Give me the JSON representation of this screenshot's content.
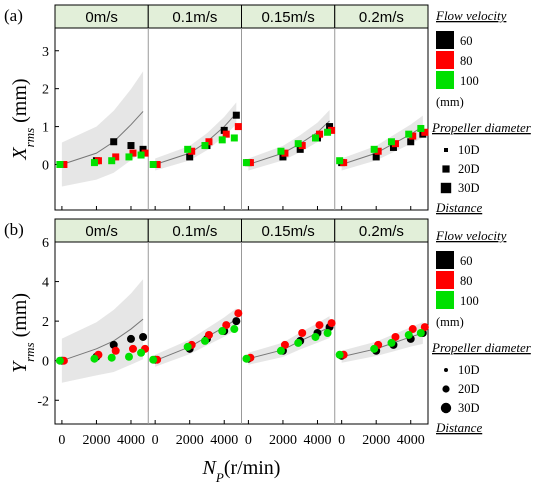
{
  "chart_data": [
    {
      "type": "scatter",
      "panel_label": "(a)",
      "ylabel": {
        "main": "X",
        "sub": "rms",
        "unit": " (mm)"
      },
      "ylim": [
        -1.2,
        3.6
      ],
      "yticks": [
        "0",
        "1",
        "2",
        "3"
      ],
      "facets": [
        {
          "label": "0m/s",
          "x": [
            0,
            2000,
            3000,
            4000,
            4700
          ],
          "series": [
            {
              "velocity": "60",
              "values": [
                0,
                0.1,
                0.6,
                0.5,
                0.4
              ]
            },
            {
              "velocity": "80",
              "values": [
                0,
                0.1,
                0.2,
                0.3,
                0.3
              ]
            },
            {
              "velocity": "100",
              "values": [
                0,
                0.05,
                0.1,
                0.2,
                0.25
              ]
            }
          ],
          "fit": [
            0,
            0.3,
            0.6,
            1.05,
            1.4
          ]
        },
        {
          "label": "0.1m/s",
          "x": [
            0,
            2000,
            3000,
            4000,
            4700
          ],
          "series": [
            {
              "velocity": "60",
              "values": [
                0,
                0.2,
                0.5,
                0.9,
                1.3
              ]
            },
            {
              "velocity": "80",
              "values": [
                0,
                0.35,
                0.6,
                0.8,
                1.0
              ]
            },
            {
              "velocity": "100",
              "values": [
                0,
                0.4,
                0.5,
                0.65,
                0.7
              ]
            }
          ],
          "fit": [
            0,
            0.3,
            0.6,
            1.0,
            1.35
          ]
        },
        {
          "label": "0.15m/s",
          "x": [
            0,
            2000,
            3000,
            4000,
            4700
          ],
          "series": [
            {
              "velocity": "60",
              "values": [
                0.05,
                0.2,
                0.4,
                0.7,
                1.0
              ]
            },
            {
              "velocity": "80",
              "values": [
                0.05,
                0.3,
                0.5,
                0.8,
                0.9
              ]
            },
            {
              "velocity": "100",
              "values": [
                0.05,
                0.35,
                0.55,
                0.7,
                0.85
              ]
            }
          ],
          "fit": [
            0,
            0.3,
            0.55,
            0.85,
            1.15
          ]
        },
        {
          "label": "0.2m/s",
          "x": [
            0,
            2000,
            3000,
            4000,
            4700
          ],
          "series": [
            {
              "velocity": "60",
              "values": [
                0.05,
                0.2,
                0.45,
                0.6,
                0.8
              ]
            },
            {
              "velocity": "80",
              "values": [
                0.05,
                0.35,
                0.55,
                0.75,
                0.85
              ]
            },
            {
              "velocity": "100",
              "values": [
                0.1,
                0.4,
                0.6,
                0.8,
                0.95
              ]
            }
          ],
          "fit": [
            0,
            0.3,
            0.55,
            0.8,
            1.0
          ]
        }
      ],
      "legend": {
        "flow_title": "Flow velocity",
        "flow_items": [
          {
            "label": "60",
            "color": "#000000"
          },
          {
            "label": "80",
            "color": "#ff0000"
          },
          {
            "label": "100",
            "color": "#00e000"
          }
        ],
        "flow_unit": "(mm)",
        "prop_title": "Propeller diameter",
        "prop_items": [
          "10D",
          "20D",
          "30D"
        ],
        "dist_title": "Distance"
      }
    },
    {
      "type": "scatter",
      "panel_label": "(b)",
      "ylabel": {
        "main": "Y",
        "sub": "rms",
        "unit": " (mm)"
      },
      "ylim": [
        -3.2,
        6
      ],
      "yticks": [
        "-2",
        "0",
        "2",
        "4",
        "6"
      ],
      "facets": [
        {
          "label": "0m/s",
          "x": [
            0,
            2000,
            3000,
            4000,
            4700
          ],
          "series": [
            {
              "velocity": "60",
              "values": [
                0,
                0.2,
                0.8,
                1.1,
                1.2
              ]
            },
            {
              "velocity": "80",
              "values": [
                0,
                0.3,
                0.5,
                0.6,
                0.6
              ]
            },
            {
              "velocity": "100",
              "values": [
                0,
                0.1,
                0.15,
                0.2,
                0.4
              ]
            }
          ],
          "fit": [
            0,
            0.6,
            1.0,
            1.6,
            2.1
          ]
        },
        {
          "label": "0.1m/s",
          "x": [
            0,
            2000,
            3000,
            4000,
            4700
          ],
          "series": [
            {
              "velocity": "60",
              "values": [
                0.05,
                0.6,
                1.1,
                1.5,
                2.0
              ]
            },
            {
              "velocity": "80",
              "values": [
                0.05,
                0.8,
                1.3,
                1.8,
                2.4
              ]
            },
            {
              "velocity": "100",
              "values": [
                0.05,
                0.7,
                1.0,
                1.5,
                1.6
              ]
            }
          ],
          "fit": [
            0,
            0.7,
            1.2,
            1.7,
            2.1
          ]
        },
        {
          "label": "0.15m/s",
          "x": [
            0,
            2000,
            3000,
            4000,
            4700
          ],
          "series": [
            {
              "velocity": "60",
              "values": [
                0.1,
                0.5,
                1.0,
                1.4,
                1.7
              ]
            },
            {
              "velocity": "80",
              "values": [
                0.15,
                0.8,
                1.4,
                1.8,
                1.9
              ]
            },
            {
              "velocity": "100",
              "values": [
                0.1,
                0.5,
                0.9,
                1.2,
                1.4
              ]
            }
          ],
          "fit": [
            0.1,
            0.55,
            1.0,
            1.4,
            1.7
          ]
        },
        {
          "label": "0.2m/s",
          "x": [
            0,
            2000,
            3000,
            4000,
            4700
          ],
          "series": [
            {
              "velocity": "60",
              "values": [
                0.25,
                0.5,
                0.8,
                1.1,
                1.4
              ]
            },
            {
              "velocity": "80",
              "values": [
                0.3,
                0.8,
                1.2,
                1.6,
                1.7
              ]
            },
            {
              "velocity": "100",
              "values": [
                0.3,
                0.6,
                0.9,
                1.3,
                1.4
              ]
            }
          ],
          "fit": [
            0.2,
            0.6,
            0.9,
            1.2,
            1.4
          ]
        }
      ],
      "legend": {
        "flow_title": "Flow velocity",
        "flow_items": [
          {
            "label": "60",
            "color": "#000000"
          },
          {
            "label": "80",
            "color": "#ff0000"
          },
          {
            "label": "100",
            "color": "#00e000"
          }
        ],
        "flow_unit": "(mm)",
        "prop_title": "Propeller diameter",
        "prop_items": [
          "10D",
          "20D",
          "30D"
        ],
        "dist_title": "Distance"
      }
    }
  ],
  "x_axis": {
    "label_main": "N",
    "label_sub": "P",
    "label_unit": "(r/min)",
    "xlim": [
      -400,
      5000
    ],
    "ticks": [
      {
        "value": 0,
        "label": "0"
      },
      {
        "value": 2000,
        "label": "2000"
      },
      {
        "value": 4000,
        "label": "4000"
      }
    ]
  },
  "colors": {
    "facet_strip": "#e2efd9",
    "band": "#dcdcdc",
    "fit_line": "#777777"
  }
}
